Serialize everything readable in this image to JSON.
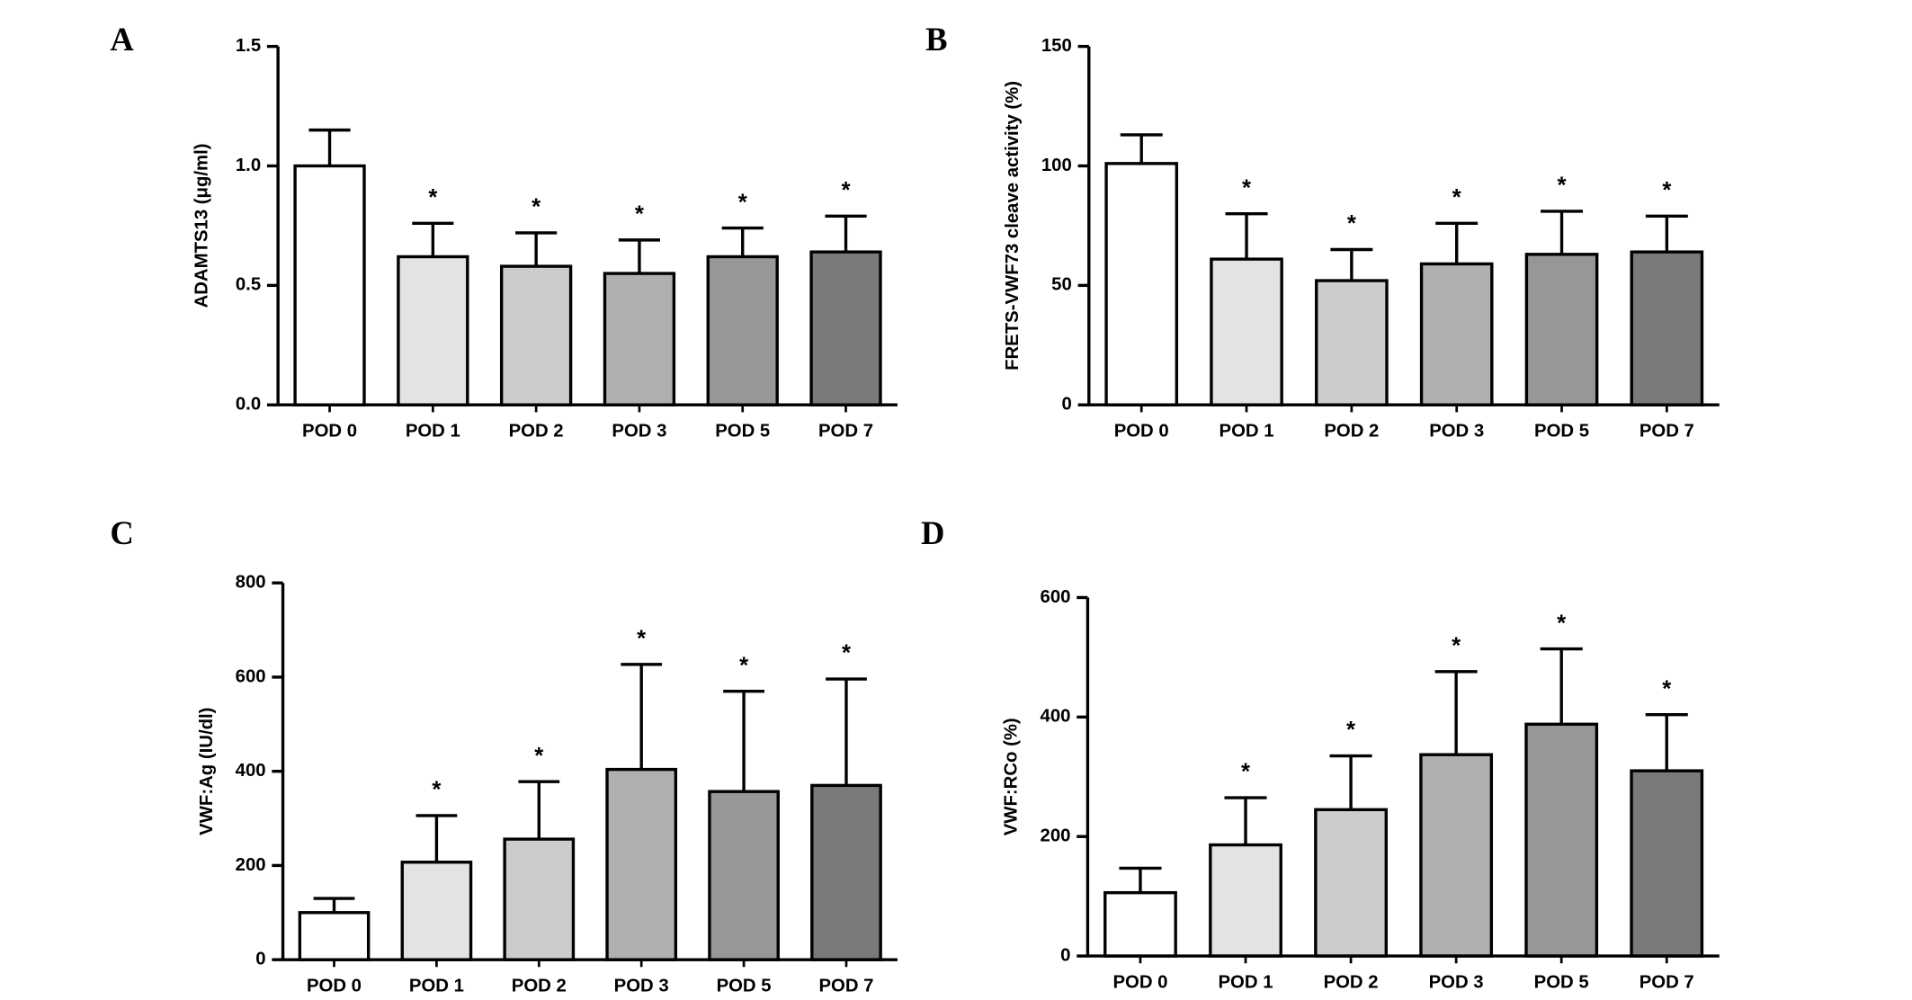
{
  "chart_data": [
    {
      "type": "bar",
      "panel": "A",
      "y_label": "ADAMTS13 (μg/ml)",
      "categories": [
        "POD 0",
        "POD 1",
        "POD 2",
        "POD 3",
        "POD 5",
        "POD 7"
      ],
      "values": [
        1.0,
        0.62,
        0.58,
        0.55,
        0.62,
        0.64
      ],
      "errors": [
        0.15,
        0.14,
        0.14,
        0.14,
        0.12,
        0.15
      ],
      "annotations": [
        null,
        "*",
        "*",
        "*",
        "*",
        "*"
      ],
      "colors": [
        "#ffffff",
        "#e3e3e3",
        "#cccccc",
        "#b0b0b0",
        "#979797",
        "#7a7a7a"
      ],
      "ylim": [
        0,
        1.5
      ],
      "yticks": [
        {
          "value": 0,
          "label": "0.0"
        },
        0.5,
        {
          "value": 1,
          "label": "1.0"
        },
        1.5
      ]
    },
    {
      "type": "bar",
      "panel": "B",
      "y_label": "FRETS-VWF73 cleave activity (%)",
      "categories": [
        "POD 0",
        "POD 1",
        "POD 2",
        "POD 3",
        "POD 5",
        "POD 7"
      ],
      "values": [
        101,
        61,
        52,
        59,
        63,
        64
      ],
      "errors": [
        12,
        19,
        13,
        17,
        18,
        15
      ],
      "annotations": [
        null,
        "*",
        "*",
        "*",
        "*",
        "*"
      ],
      "colors": [
        "#ffffff",
        "#e3e3e3",
        "#cccccc",
        "#b0b0b0",
        "#979797",
        "#7a7a7a"
      ],
      "ylim": [
        0,
        150
      ],
      "yticks": [
        0,
        50,
        100,
        150
      ]
    },
    {
      "type": "bar",
      "panel": "C",
      "y_label": "VWF:Ag (IU/dl)",
      "categories": [
        "POD 0",
        "POD 1",
        "POD 2",
        "POD 3",
        "POD 5",
        "POD 7"
      ],
      "values": [
        100,
        207,
        256,
        404,
        357,
        370
      ],
      "errors": [
        30,
        99,
        122,
        223,
        213,
        226
      ],
      "annotations": [
        null,
        "*",
        "*",
        "*",
        "*",
        "*"
      ],
      "colors": [
        "#ffffff",
        "#e3e3e3",
        "#cccccc",
        "#b0b0b0",
        "#979797",
        "#7a7a7a"
      ],
      "ylim": [
        0,
        800
      ],
      "yticks": [
        0,
        200,
        400,
        600,
        800
      ]
    },
    {
      "type": "bar",
      "panel": "D",
      "y_label": "VWF:RCo (%)",
      "categories": [
        "POD 0",
        "POD 1",
        "POD 2",
        "POD 3",
        "POD 5",
        "POD 7"
      ],
      "values": [
        106,
        186,
        245,
        337,
        388,
        310
      ],
      "errors": [
        41,
        79,
        90,
        139,
        126,
        94
      ],
      "annotations": [
        null,
        "*",
        "*",
        "*",
        "*",
        "*"
      ],
      "colors": [
        "#ffffff",
        "#e3e3e3",
        "#cccccc",
        "#b0b0b0",
        "#979797",
        "#7a7a7a"
      ],
      "ylim": [
        0,
        600
      ],
      "yticks": [
        0,
        200,
        400,
        600
      ]
    }
  ]
}
